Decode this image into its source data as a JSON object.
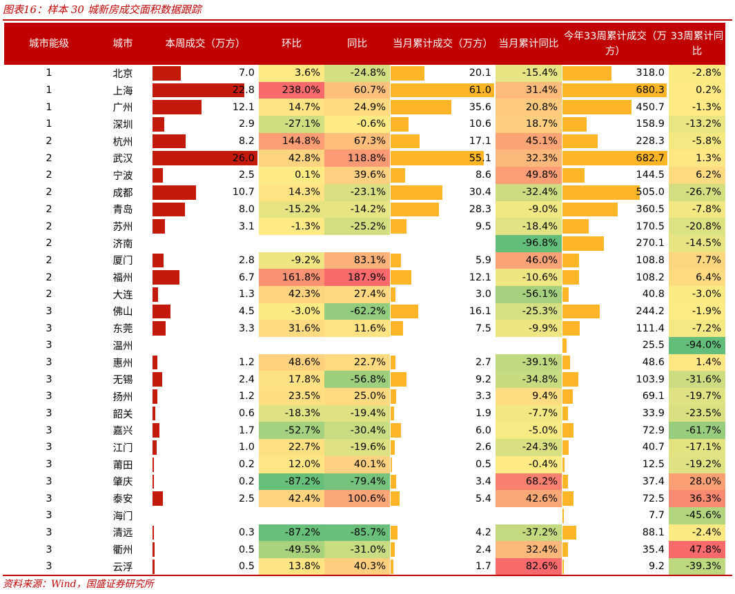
{
  "title": "图表16：样本 30 城新房成交面积数据跟踪",
  "source": "资料来源：Wind，国盛证券研究所",
  "colors": {
    "accent": "#c00000",
    "bar_red": "#c41a0c",
    "bar_orange": "#fcb526"
  },
  "chart_data": {
    "type": "table",
    "headers": [
      "城市能级",
      "城市",
      "本周成交（万方）",
      "环比",
      "同比",
      "当月累计成交（万方）",
      "当月累计同比",
      "今年33周累计成交（万方）",
      "33周累计同比"
    ],
    "rows": [
      {
        "tier": "1",
        "city": "北京",
        "week": "7.0",
        "wow": "3.6%",
        "yoy": "-24.8%",
        "month": "20.1",
        "month_yoy": "-15.4%",
        "ytd": "318.0",
        "ytd_yoy": "-2.8%"
      },
      {
        "tier": "1",
        "city": "上海",
        "week": "22.8",
        "wow": "238.0%",
        "yoy": "60.7%",
        "month": "61.0",
        "month_yoy": "31.4%",
        "ytd": "680.3",
        "ytd_yoy": "0.2%"
      },
      {
        "tier": "1",
        "city": "广州",
        "week": "12.1",
        "wow": "14.7%",
        "yoy": "24.9%",
        "month": "35.6",
        "month_yoy": "20.8%",
        "ytd": "450.7",
        "ytd_yoy": "-1.3%"
      },
      {
        "tier": "1",
        "city": "深圳",
        "week": "2.9",
        "wow": "-27.1%",
        "yoy": "-0.6%",
        "month": "10.6",
        "month_yoy": "18.7%",
        "ytd": "158.9",
        "ytd_yoy": "-13.2%"
      },
      {
        "tier": "2",
        "city": "杭州",
        "week": "8.2",
        "wow": "144.8%",
        "yoy": "67.3%",
        "month": "17.1",
        "month_yoy": "45.1%",
        "ytd": "228.3",
        "ytd_yoy": "-5.8%"
      },
      {
        "tier": "2",
        "city": "武汉",
        "week": "26.0",
        "wow": "42.8%",
        "yoy": "118.8%",
        "month": "55.1",
        "month_yoy": "32.3%",
        "ytd": "682.7",
        "ytd_yoy": "1.3%"
      },
      {
        "tier": "2",
        "city": "宁波",
        "week": "2.5",
        "wow": "0.1%",
        "yoy": "39.6%",
        "month": "8.6",
        "month_yoy": "49.8%",
        "ytd": "144.5",
        "ytd_yoy": "6.2%"
      },
      {
        "tier": "2",
        "city": "成都",
        "week": "10.7",
        "wow": "14.3%",
        "yoy": "-23.1%",
        "month": "30.4",
        "month_yoy": "-32.4%",
        "ytd": "505.0",
        "ytd_yoy": "-26.7%"
      },
      {
        "tier": "2",
        "city": "青岛",
        "week": "8.0",
        "wow": "-15.2%",
        "yoy": "-14.2%",
        "month": "28.3",
        "month_yoy": "-9.0%",
        "ytd": "360.5",
        "ytd_yoy": "-7.8%"
      },
      {
        "tier": "2",
        "city": "苏州",
        "week": "3.1",
        "wow": "-1.3%",
        "yoy": "-25.2%",
        "month": "9.5",
        "month_yoy": "-18.4%",
        "ytd": "170.5",
        "ytd_yoy": "-20.8%"
      },
      {
        "tier": "2",
        "city": "济南",
        "week": "",
        "wow": "",
        "yoy": "",
        "month": "",
        "month_yoy": "-96.8%",
        "ytd": "270.1",
        "ytd_yoy": "-14.5%"
      },
      {
        "tier": "2",
        "city": "厦门",
        "week": "2.8",
        "wow": "-9.2%",
        "yoy": "83.1%",
        "month": "5.9",
        "month_yoy": "46.0%",
        "ytd": "108.8",
        "ytd_yoy": "7.7%"
      },
      {
        "tier": "2",
        "city": "福州",
        "week": "6.7",
        "wow": "161.8%",
        "yoy": "187.9%",
        "month": "12.1",
        "month_yoy": "-10.6%",
        "ytd": "108.2",
        "ytd_yoy": "6.4%"
      },
      {
        "tier": "2",
        "city": "大连",
        "week": "1.3",
        "wow": "42.3%",
        "yoy": "27.4%",
        "month": "3.0",
        "month_yoy": "-56.1%",
        "ytd": "40.8",
        "ytd_yoy": "-3.0%"
      },
      {
        "tier": "3",
        "city": "佛山",
        "week": "4.5",
        "wow": "-3.0%",
        "yoy": "-62.2%",
        "month": "16.1",
        "month_yoy": "-25.3%",
        "ytd": "244.2",
        "ytd_yoy": "-1.9%"
      },
      {
        "tier": "3",
        "city": "东莞",
        "week": "3.3",
        "wow": "31.6%",
        "yoy": "11.6%",
        "month": "7.5",
        "month_yoy": "-9.9%",
        "ytd": "111.4",
        "ytd_yoy": "-7.2%"
      },
      {
        "tier": "3",
        "city": "温州",
        "week": "",
        "wow": "",
        "yoy": "",
        "month": "",
        "month_yoy": "",
        "ytd": "25.5",
        "ytd_yoy": "-94.0%"
      },
      {
        "tier": "3",
        "city": "惠州",
        "week": "1.2",
        "wow": "48.6%",
        "yoy": "22.7%",
        "month": "2.7",
        "month_yoy": "-39.1%",
        "ytd": "48.6",
        "ytd_yoy": "1.4%"
      },
      {
        "tier": "3",
        "city": "无锡",
        "week": "2.4",
        "wow": "17.8%",
        "yoy": "-56.8%",
        "month": "9.2",
        "month_yoy": "-34.8%",
        "ytd": "103.9",
        "ytd_yoy": "-31.6%"
      },
      {
        "tier": "3",
        "city": "扬州",
        "week": "1.2",
        "wow": "23.5%",
        "yoy": "25.0%",
        "month": "3.3",
        "month_yoy": "9.4%",
        "ytd": "69.1",
        "ytd_yoy": "-19.7%"
      },
      {
        "tier": "3",
        "city": "韶关",
        "week": "0.6",
        "wow": "-18.3%",
        "yoy": "-19.4%",
        "month": "1.9",
        "month_yoy": "-7.7%",
        "ytd": "33.9",
        "ytd_yoy": "-23.5%"
      },
      {
        "tier": "3",
        "city": "嘉兴",
        "week": "1.7",
        "wow": "-52.7%",
        "yoy": "-30.4%",
        "month": "6.0",
        "month_yoy": "-5.0%",
        "ytd": "72.9",
        "ytd_yoy": "-61.7%"
      },
      {
        "tier": "3",
        "city": "江门",
        "week": "1.0",
        "wow": "22.7%",
        "yoy": "-19.6%",
        "month": "2.6",
        "month_yoy": "-24.3%",
        "ytd": "40.7",
        "ytd_yoy": "-17.1%"
      },
      {
        "tier": "3",
        "city": "莆田",
        "week": "0.2",
        "wow": "12.0%",
        "yoy": "40.1%",
        "month": "0.5",
        "month_yoy": "-0.4%",
        "ytd": "12.5",
        "ytd_yoy": "-19.2%"
      },
      {
        "tier": "3",
        "city": "肇庆",
        "week": "0.2",
        "wow": "-87.2%",
        "yoy": "-79.4%",
        "month": "3.4",
        "month_yoy": "68.2%",
        "ytd": "37.4",
        "ytd_yoy": "28.0%"
      },
      {
        "tier": "3",
        "city": "泰安",
        "week": "2.5",
        "wow": "42.4%",
        "yoy": "100.6%",
        "month": "5.4",
        "month_yoy": "42.6%",
        "ytd": "72.5",
        "ytd_yoy": "36.3%"
      },
      {
        "tier": "3",
        "city": "海门",
        "week": "",
        "wow": "",
        "yoy": "",
        "month": "",
        "month_yoy": "",
        "ytd": "7.7",
        "ytd_yoy": "-45.6%"
      },
      {
        "tier": "3",
        "city": "清远",
        "week": "0.3",
        "wow": "-87.2%",
        "yoy": "-85.7%",
        "month": "4.2",
        "month_yoy": "-37.2%",
        "ytd": "88.1",
        "ytd_yoy": "-2.4%"
      },
      {
        "tier": "3",
        "city": "衢州",
        "week": "0.5",
        "wow": "-49.5%",
        "yoy": "-31.0%",
        "month": "2.4",
        "month_yoy": "32.4%",
        "ytd": "35.4",
        "ytd_yoy": "47.8%"
      },
      {
        "tier": "3",
        "city": "云浮",
        "week": "0.5",
        "wow": "13.8%",
        "yoy": "40.3%",
        "month": "1.7",
        "month_yoy": "82.6%",
        "ytd": "9.2",
        "ytd_yoy": "-39.3%"
      }
    ]
  }
}
